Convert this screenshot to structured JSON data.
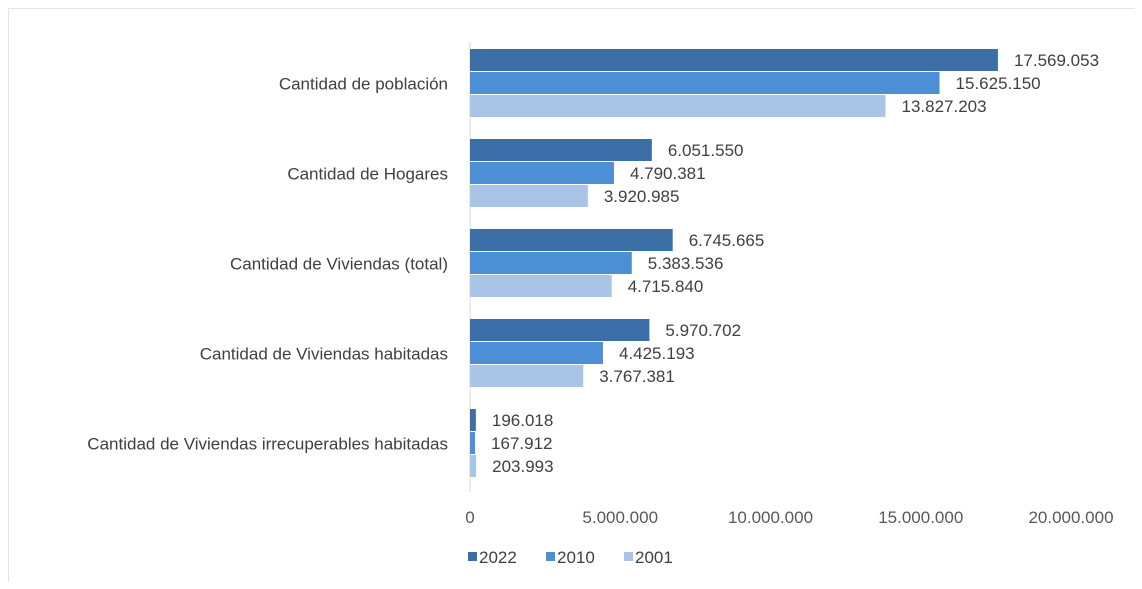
{
  "chart_data": {
    "type": "bar",
    "orientation": "horizontal",
    "categories": [
      "Cantidad de población",
      "Cantidad de Hogares",
      "Cantidad de Viviendas (total)",
      "Cantidad de Viviendas habitadas",
      "Cantidad de Viviendas irrecuperables habitadas"
    ],
    "series": [
      {
        "name": "2022",
        "color": "#3c6fa8",
        "values": [
          17569053,
          6051550,
          6745665,
          5970702,
          196018
        ],
        "labels": [
          "17.569.053",
          "6.051.550",
          "6.745.665",
          "5.970.702",
          "196.018"
        ]
      },
      {
        "name": "2010",
        "color": "#4c8fd4",
        "values": [
          15625150,
          4790381,
          5383536,
          4425193,
          167912
        ],
        "labels": [
          "15.625.150",
          "4.790.381",
          "5.383.536",
          "4.425.193",
          "167.912"
        ]
      },
      {
        "name": "2001",
        "color": "#a8c4e6",
        "values": [
          13827203,
          3920985,
          4715840,
          3767381,
          203993
        ],
        "labels": [
          "13.827.203",
          "3.920.985",
          "4.715.840",
          "3.767.381",
          "203.993"
        ]
      }
    ],
    "xlim": [
      0,
      20000000
    ],
    "ticks": [
      0,
      5000000,
      10000000,
      15000000,
      20000000
    ],
    "tick_labels": [
      "0",
      "5.000.000",
      "10.000.000",
      "15.000.000",
      "20.000.000"
    ],
    "grid": false,
    "legend_position": "bottom"
  }
}
